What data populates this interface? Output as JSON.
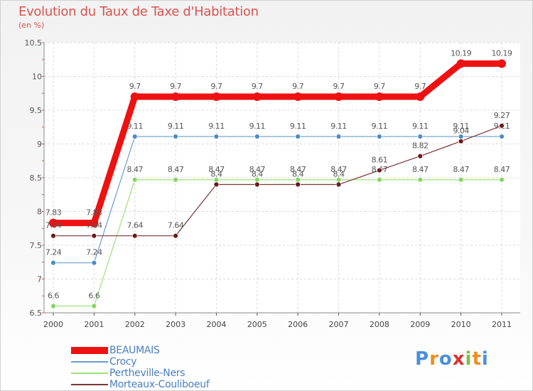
{
  "title": "Evolution du Taux de Taxe d'Habitation",
  "subtitle": "(en %)",
  "chart_data": {
    "type": "line",
    "x": [
      "2000",
      "2001",
      "2002",
      "2003",
      "2004",
      "2005",
      "2006",
      "2007",
      "2008",
      "2009",
      "2010",
      "2011"
    ],
    "yticks": [
      "6.5",
      "7",
      "7.5",
      "8",
      "8.5",
      "9",
      "9.5",
      "10",
      "10.5"
    ],
    "ylim": [
      6.5,
      10.5
    ],
    "series": [
      {
        "name": "BEAUMAIS",
        "color": "#ee1111",
        "values": [
          7.83,
          7.83,
          9.7,
          9.7,
          9.7,
          9.7,
          9.7,
          9.7,
          9.7,
          9.7,
          10.19,
          10.19
        ],
        "labels": [
          "7.83",
          "7.83",
          "9.7",
          "9.7",
          "9.7",
          "9.7",
          "9.7",
          "9.7",
          "9.7",
          "9.7",
          "10.19",
          "10.19"
        ]
      },
      {
        "name": "Crocy",
        "color": "#6a9ccb",
        "values": [
          7.24,
          7.24,
          9.11,
          9.11,
          9.11,
          9.11,
          9.11,
          9.11,
          9.11,
          9.11,
          9.11,
          9.11
        ],
        "labels": [
          "7.24",
          "7.24",
          "9.11",
          "9.11",
          "9.11",
          "9.11",
          "9.11",
          "9.11",
          "9.11",
          "9.11",
          "9.11",
          "9.11"
        ]
      },
      {
        "name": "Pertheville-Ners",
        "color": "#9ee07a",
        "values": [
          6.6,
          6.6,
          8.47,
          8.47,
          8.47,
          8.47,
          8.47,
          8.47,
          8.47,
          8.47,
          8.47,
          8.47
        ],
        "labels": [
          "6.6",
          "6.6",
          "8.47",
          "8.47",
          "8.47",
          "8.47",
          "8.47",
          "8.47",
          "8.47",
          "8.47",
          "8.47",
          "8.47"
        ]
      },
      {
        "name": "Morteaux-Couliboeuf",
        "color": "#7a3535",
        "values": [
          7.64,
          7.64,
          7.64,
          7.64,
          8.4,
          8.4,
          8.4,
          8.4,
          8.61,
          8.82,
          9.04,
          9.27
        ],
        "labels": [
          "7.64",
          "7.64",
          "7.64",
          "7.64",
          "8.4",
          "8.4",
          "8.4",
          "8.4",
          "8.61",
          "8.82",
          "9.04",
          "9.27"
        ]
      }
    ]
  },
  "logo": {
    "text": "Proxiti"
  }
}
